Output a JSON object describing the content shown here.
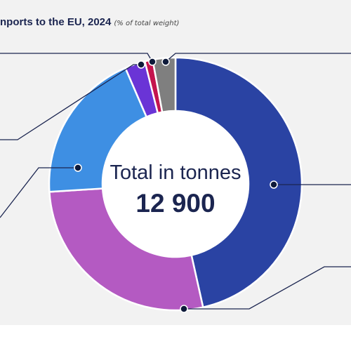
{
  "title": "nports to the EU, 2024",
  "subtitle": "(% of total weight)",
  "center": {
    "label": "Total in tonnes",
    "value": "12 900"
  },
  "chart_data": {
    "type": "pie",
    "donut": true,
    "unit": "% of total weight",
    "total_tonnes": "12 900",
    "slices": [
      {
        "value": 46.5,
        "color": "#2a43a3"
      },
      {
        "value": 27.5,
        "color": "#b45ac2"
      },
      {
        "value": 19.5,
        "color": "#3e8fe3"
      },
      {
        "value": 2.6,
        "color": "#6a34d6"
      },
      {
        "value": 1.0,
        "color": "#c4144e"
      },
      {
        "value": 2.9,
        "color": "#7f7f7f"
      }
    ]
  }
}
